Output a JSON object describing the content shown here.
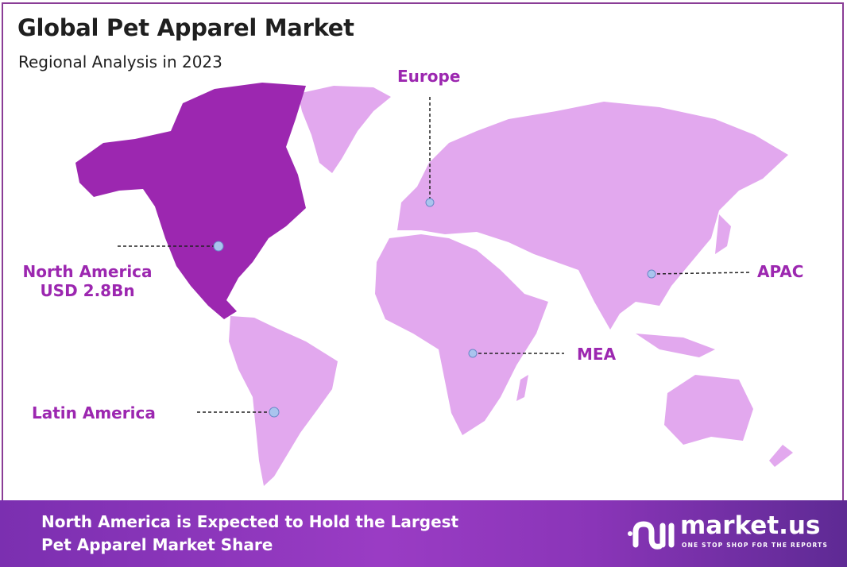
{
  "header": {
    "title": "Global Pet Apparel Market",
    "subtitle": "Regional Analysis in 2023"
  },
  "colors": {
    "highlight": "#9c27b0",
    "region": "#e2a8ee",
    "label": "#9c27b0",
    "marker": "#a9c4ee",
    "footer": "#8a35b8"
  },
  "regions": [
    {
      "id": "north-america",
      "name": "North America",
      "value": "USD 2.8Bn",
      "highlighted": true
    },
    {
      "id": "europe",
      "name": "Europe"
    },
    {
      "id": "apac",
      "name": "APAC"
    },
    {
      "id": "mea",
      "name": "MEA"
    },
    {
      "id": "latin-america",
      "name": "Latin America"
    }
  ],
  "footer": {
    "line1": "North America is Expected to Hold the Largest",
    "line2": "Pet Apparel Market Share"
  },
  "logo": {
    "name": "market.us",
    "tagline": "ONE STOP SHOP FOR THE REPORTS"
  }
}
